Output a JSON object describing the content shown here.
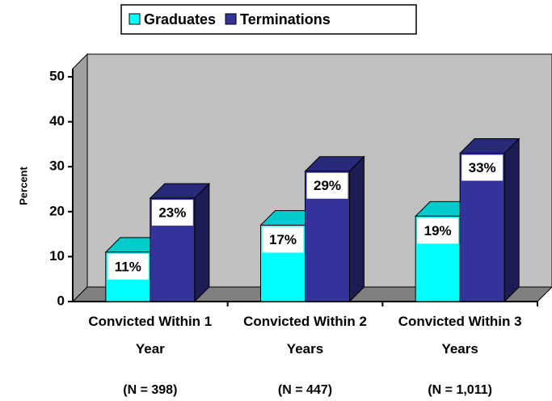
{
  "chart_data": {
    "type": "bar3d",
    "categories": [
      "Convicted Within 1 Year",
      "Convicted Within 2 Years",
      "Convicted Within 3 Years"
    ],
    "category_notes": [
      "(N = 398)",
      "(N = 447)",
      "(N = 1,011)"
    ],
    "series": [
      {
        "name": "Graduates",
        "color": "#00ffff",
        "values": [
          11,
          17,
          19
        ],
        "value_labels": [
          "11%",
          "17%",
          "19%"
        ]
      },
      {
        "name": "Terminations",
        "color": "#333399",
        "values": [
          23,
          29,
          33
        ],
        "value_labels": [
          "23%",
          "29%",
          "33%"
        ]
      }
    ],
    "y_label": "Percent",
    "ylim": [
      0,
      50
    ],
    "yticks": [
      0,
      10,
      20,
      30,
      40,
      50
    ],
    "legend": "top"
  }
}
